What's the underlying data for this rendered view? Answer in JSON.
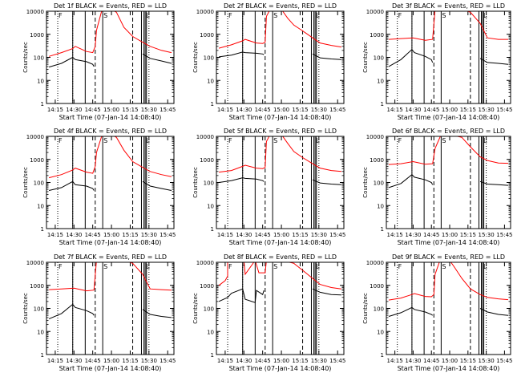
{
  "chart_data": {
    "type": "line",
    "layout": "3x3 grid",
    "y_scale": "log",
    "ylim": [
      1,
      10000
    ],
    "y_ticks": [
      "1",
      "10",
      "100",
      "1000",
      "10000"
    ],
    "x_ticks": [
      "14:15",
      "14:30",
      "14:45",
      "15:00",
      "15:15",
      "15:30",
      "15:45"
    ],
    "xlim": [
      "14:08",
      "15:50"
    ],
    "ylabel": "Counts/sec",
    "xlabel": "Start Time (07-Jan-14 14:08:40)",
    "colors": {
      "events": "#000000",
      "lld": "#ff0000"
    },
    "markers": [
      {
        "time": "14:17",
        "label": "F",
        "style": "dotted"
      },
      {
        "time": "14:29",
        "label": "",
        "style": "dotted"
      },
      {
        "time": "14:29",
        "label": "",
        "style": "solid"
      },
      {
        "time": "14:39",
        "label": "",
        "style": "solid"
      },
      {
        "time": "14:47",
        "label": "",
        "style": "dashed"
      },
      {
        "time": "14:53",
        "label": "S",
        "style": "solid"
      },
      {
        "time": "15:17",
        "label": "",
        "style": "dashed"
      },
      {
        "time": "15:24",
        "label": "",
        "style": "solid"
      },
      {
        "time": "15:26",
        "label": "",
        "style": "solid"
      },
      {
        "time": "15:27",
        "label": "L",
        "style": "solid"
      },
      {
        "time": "15:28",
        "label": "",
        "style": "solid"
      },
      {
        "time": "15:30",
        "label": "",
        "style": "dotted"
      }
    ],
    "panels": [
      {
        "title": "Det 1f BLACK = Events, RED = LLD",
        "lld": {
          "t": [
            "14:10",
            "14:20",
            "14:29",
            "14:31",
            "14:40",
            "14:45",
            "14:47",
            "14:48",
            "14:52",
            "14:56",
            "15:00",
            "15:04",
            "15:10",
            "15:17",
            "15:25",
            "15:31",
            "15:40",
            "15:48"
          ],
          "v": [
            110,
            160,
            240,
            300,
            180,
            160,
            300,
            1500,
            9500,
            12000,
            12000,
            9000,
            2000,
            800,
            450,
            300,
            200,
            160
          ]
        },
        "events": {
          "t": [
            "14:10",
            "14:20",
            "14:29",
            "14:31",
            "14:40",
            "14:45",
            "14:46",
            "15:23",
            "15:25",
            "15:31",
            "15:40",
            "15:48"
          ],
          "v": [
            38,
            55,
            100,
            80,
            65,
            50,
            40,
            null,
            140,
            90,
            70,
            55
          ]
        }
      },
      {
        "title": "Det 2f BLACK = Events, RED = LLD",
        "lld": {
          "t": [
            "14:10",
            "14:20",
            "14:29",
            "14:31",
            "14:40",
            "14:45",
            "14:47",
            "14:48",
            "14:51",
            "15:00",
            "15:05",
            "15:10",
            "15:17",
            "15:25",
            "15:31",
            "15:40",
            "15:48"
          ],
          "v": [
            250,
            350,
            520,
            600,
            420,
            400,
            450,
            6000,
            12000,
            12000,
            5000,
            2500,
            1400,
            700,
            420,
            330,
            280
          ]
        },
        "events": {
          "t": [
            "14:10",
            "14:20",
            "14:29",
            "14:31",
            "14:40",
            "14:45",
            "14:46",
            "15:23",
            "15:25",
            "15:31",
            "15:40",
            "15:48"
          ],
          "v": [
            105,
            125,
            170,
            160,
            150,
            140,
            130,
            null,
            140,
            95,
            85,
            80
          ]
        }
      },
      {
        "title": "Det 3f BLACK = Events, RED = LLD",
        "lld": {
          "t": [
            "14:10",
            "14:20",
            "14:30",
            "14:40",
            "14:46",
            "14:48",
            "15:00",
            "15:10",
            "15:17",
            "15:25",
            "15:31",
            "15:40",
            "15:48"
          ],
          "v": [
            600,
            650,
            700,
            550,
            600,
            12000,
            12000,
            12000,
            9000,
            3000,
            700,
            600,
            600
          ]
        },
        "events": {
          "t": [
            "14:10",
            "14:20",
            "14:29",
            "14:31",
            "14:40",
            "14:45",
            "14:46",
            "15:23",
            "15:25",
            "15:31",
            "15:40",
            "15:48"
          ],
          "v": [
            40,
            80,
            220,
            160,
            110,
            80,
            60,
            null,
            90,
            60,
            55,
            50
          ]
        }
      },
      {
        "title": "Det 4f BLACK = Events, RED = LLD",
        "lld": {
          "t": [
            "14:10",
            "14:20",
            "14:29",
            "14:31",
            "14:40",
            "14:45",
            "14:47",
            "14:48",
            "14:52",
            "14:56",
            "15:00",
            "15:04",
            "15:10",
            "15:17",
            "15:25",
            "15:31",
            "15:40",
            "15:48"
          ],
          "v": [
            160,
            220,
            350,
            420,
            280,
            250,
            500,
            2000,
            9500,
            12000,
            12000,
            9000,
            2500,
            800,
            450,
            300,
            220,
            180
          ]
        },
        "events": {
          "t": [
            "14:10",
            "14:20",
            "14:29",
            "14:31",
            "14:40",
            "14:45",
            "14:46",
            "15:23",
            "15:25",
            "15:31",
            "15:40",
            "15:48"
          ],
          "v": [
            45,
            60,
            110,
            80,
            70,
            55,
            45,
            null,
            110,
            70,
            55,
            45
          ]
        }
      },
      {
        "title": "Det 5f BLACK = Events, RED = LLD",
        "lld": {
          "t": [
            "14:10",
            "14:20",
            "14:29",
            "14:31",
            "14:40",
            "14:45",
            "14:47",
            "14:48",
            "14:51",
            "15:00",
            "15:05",
            "15:10",
            "15:17",
            "15:25",
            "15:31",
            "15:40",
            "15:48"
          ],
          "v": [
            280,
            330,
            500,
            560,
            420,
            400,
            450,
            6000,
            12000,
            12000,
            5000,
            2200,
            1200,
            650,
            420,
            330,
            300
          ]
        },
        "events": {
          "t": [
            "14:10",
            "14:20",
            "14:29",
            "14:31",
            "14:40",
            "14:45",
            "14:46",
            "15:23",
            "15:25",
            "15:31",
            "15:40",
            "15:48"
          ],
          "v": [
            100,
            120,
            160,
            150,
            140,
            120,
            110,
            null,
            130,
            95,
            85,
            80
          ]
        }
      },
      {
        "title": "Det 6f BLACK = Events, RED = LLD",
        "lld": {
          "t": [
            "14:10",
            "14:20",
            "14:30",
            "14:40",
            "14:46",
            "14:48",
            "14:53",
            "15:00",
            "15:10",
            "15:17",
            "15:25",
            "15:31",
            "15:40",
            "15:48"
          ],
          "v": [
            600,
            650,
            800,
            620,
            650,
            3000,
            12000,
            12000,
            9000,
            3500,
            1300,
            900,
            700,
            680
          ]
        },
        "events": {
          "t": [
            "14:10",
            "14:20",
            "14:29",
            "14:31",
            "14:40",
            "14:45",
            "14:46",
            "15:23",
            "15:25",
            "15:31",
            "15:40",
            "15:48"
          ],
          "v": [
            60,
            90,
            220,
            170,
            130,
            100,
            80,
            null,
            110,
            85,
            80,
            75
          ]
        }
      },
      {
        "title": "Det 7f BLACK = Events, RED = LLD",
        "lld": {
          "t": [
            "14:10",
            "14:20",
            "14:30",
            "14:40",
            "14:46",
            "14:48",
            "15:00",
            "15:10",
            "15:17",
            "15:25",
            "15:31",
            "15:40",
            "15:48"
          ],
          "v": [
            650,
            700,
            750,
            580,
            620,
            12000,
            12000,
            12000,
            9000,
            3000,
            700,
            650,
            620
          ]
        },
        "events": {
          "t": [
            "14:10",
            "14:20",
            "14:29",
            "14:31",
            "14:40",
            "14:45",
            "14:46",
            "15:23",
            "15:25",
            "15:31",
            "15:40",
            "15:48"
          ],
          "v": [
            35,
            60,
            150,
            110,
            80,
            60,
            50,
            null,
            90,
            55,
            45,
            40
          ]
        }
      },
      {
        "title": "Det 8f BLACK = Events, RED = LLD",
        "lld": {
          "t": [
            "14:10",
            "14:15",
            "14:17",
            "14:17",
            "14:30",
            "14:31",
            "14:39",
            "14:42",
            "14:47",
            "14:48",
            "15:00",
            "15:10",
            "15:17",
            "15:25",
            "15:31",
            "15:40",
            "15:48"
          ],
          "v": [
            1000,
            1600,
            2500,
            12000,
            12000,
            3000,
            12000,
            3500,
            3500,
            12000,
            12000,
            9000,
            4500,
            2000,
            1100,
            800,
            700
          ]
        },
        "events": {
          "t": [
            "14:10",
            "14:17",
            "14:20",
            "14:29",
            "14:31",
            "14:39",
            "14:40",
            "14:45",
            "14:46",
            "15:23",
            "15:25",
            "15:31",
            "15:40",
            "15:48"
          ],
          "v": [
            200,
            300,
            450,
            700,
            250,
            180,
            600,
            400,
            600,
            null,
            700,
            500,
            400,
            380
          ]
        }
      },
      {
        "title": "Det 9f BLACK = Events, RED = LLD",
        "lld": {
          "t": [
            "14:10",
            "14:20",
            "14:29",
            "14:31",
            "14:40",
            "14:45",
            "14:47",
            "14:48",
            "14:52",
            "14:56",
            "15:00",
            "15:04",
            "15:10",
            "15:17",
            "15:25",
            "15:31",
            "15:40",
            "15:48"
          ],
          "v": [
            230,
            280,
            400,
            440,
            330,
            320,
            400,
            3000,
            12000,
            12000,
            12000,
            6000,
            2000,
            700,
            400,
            300,
            260,
            240
          ]
        },
        "events": {
          "t": [
            "14:10",
            "14:20",
            "14:29",
            "14:31",
            "14:40",
            "14:45",
            "14:46",
            "15:23",
            "15:25",
            "15:31",
            "15:40",
            "15:48"
          ],
          "v": [
            45,
            65,
            110,
            90,
            70,
            55,
            50,
            null,
            100,
            70,
            55,
            50
          ]
        }
      }
    ]
  }
}
